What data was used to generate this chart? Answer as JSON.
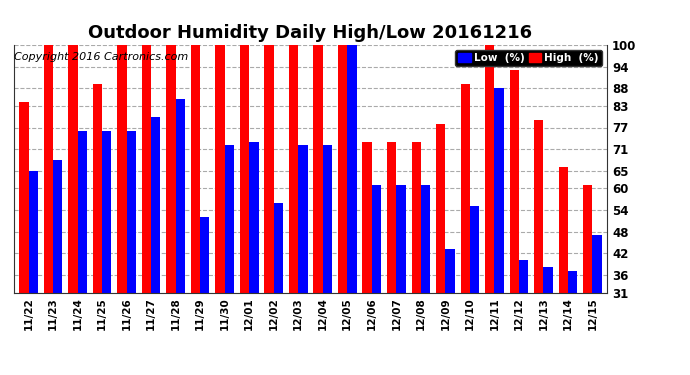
{
  "title": "Outdoor Humidity Daily High/Low 20161216",
  "copyright": "Copyright 2016 Cartronics.com",
  "categories": [
    "11/22",
    "11/23",
    "11/24",
    "11/25",
    "11/26",
    "11/27",
    "11/28",
    "11/29",
    "11/30",
    "12/01",
    "12/02",
    "12/03",
    "12/04",
    "12/05",
    "12/06",
    "12/07",
    "12/08",
    "12/09",
    "12/10",
    "12/11",
    "12/12",
    "12/13",
    "12/14",
    "12/15"
  ],
  "high": [
    84,
    100,
    100,
    89,
    100,
    100,
    100,
    100,
    100,
    100,
    100,
    100,
    100,
    100,
    73,
    73,
    73,
    78,
    89,
    100,
    93,
    79,
    66,
    61
  ],
  "low": [
    65,
    68,
    76,
    76,
    76,
    80,
    85,
    52,
    72,
    73,
    56,
    72,
    72,
    100,
    61,
    61,
    61,
    43,
    55,
    88,
    40,
    38,
    37,
    47
  ],
  "high_color": "#ff0000",
  "low_color": "#0000ff",
  "bg_color": "#ffffff",
  "grid_color": "#aaaaaa",
  "bar_bottom": 31,
  "ylim_min": 31,
  "ylim_max": 100,
  "yticks": [
    31,
    36,
    42,
    48,
    54,
    60,
    65,
    71,
    77,
    83,
    88,
    94,
    100
  ],
  "title_fontsize": 13,
  "copyright_fontsize": 8,
  "legend_low_label": "Low  (%)",
  "legend_high_label": "High  (%)"
}
